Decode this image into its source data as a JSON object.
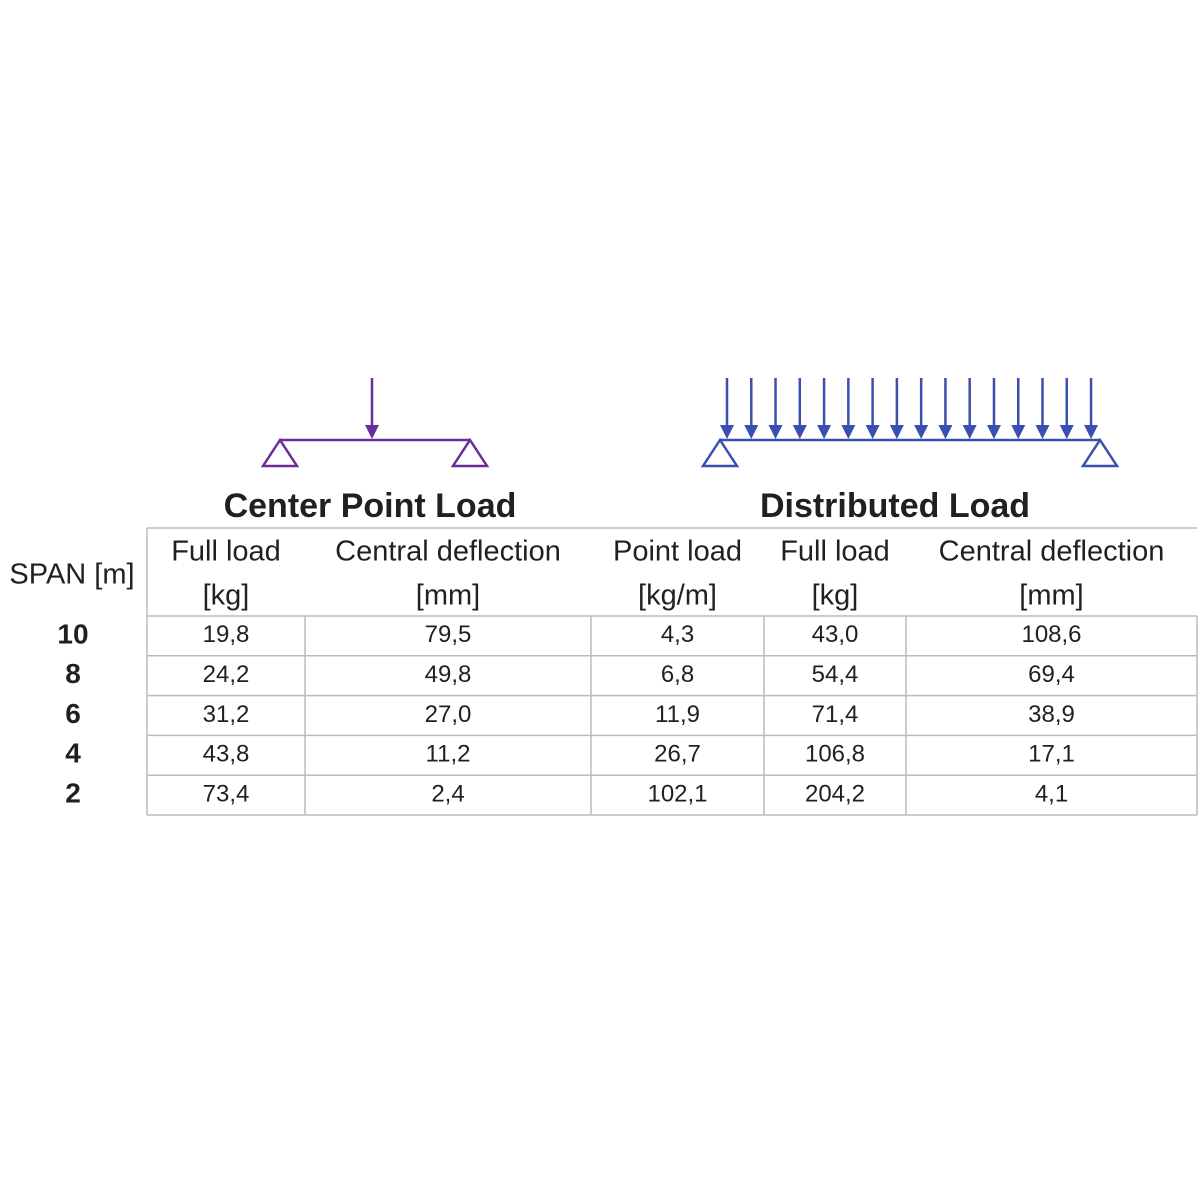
{
  "titles": {
    "center_point_load": "Center Point Load",
    "distributed_load": "Distributed Load"
  },
  "table": {
    "row_header": "SPAN [m]",
    "columns": [
      [
        "Full load",
        "[kg]"
      ],
      [
        "Central deflection",
        "[mm]"
      ],
      [
        "Point load",
        "[kg/m]"
      ],
      [
        "Full load",
        "[kg]"
      ],
      [
        "Central deflection",
        "[mm]"
      ]
    ],
    "rows": [
      {
        "span": "10",
        "cells": [
          "19,8",
          "79,5",
          "4,3",
          "43,0",
          "108,6"
        ]
      },
      {
        "span": "8",
        "cells": [
          "24,2",
          "49,8",
          "6,8",
          "54,4",
          "69,4"
        ]
      },
      {
        "span": "6",
        "cells": [
          "31,2",
          "27,0",
          "11,9",
          "71,4",
          "38,9"
        ]
      },
      {
        "span": "4",
        "cells": [
          "43,8",
          "11,2",
          "26,7",
          "106,8",
          "17,1"
        ]
      },
      {
        "span": "2",
        "cells": [
          "73,4",
          "2,4",
          "102,1",
          "204,2",
          "4,1"
        ]
      }
    ]
  }
}
